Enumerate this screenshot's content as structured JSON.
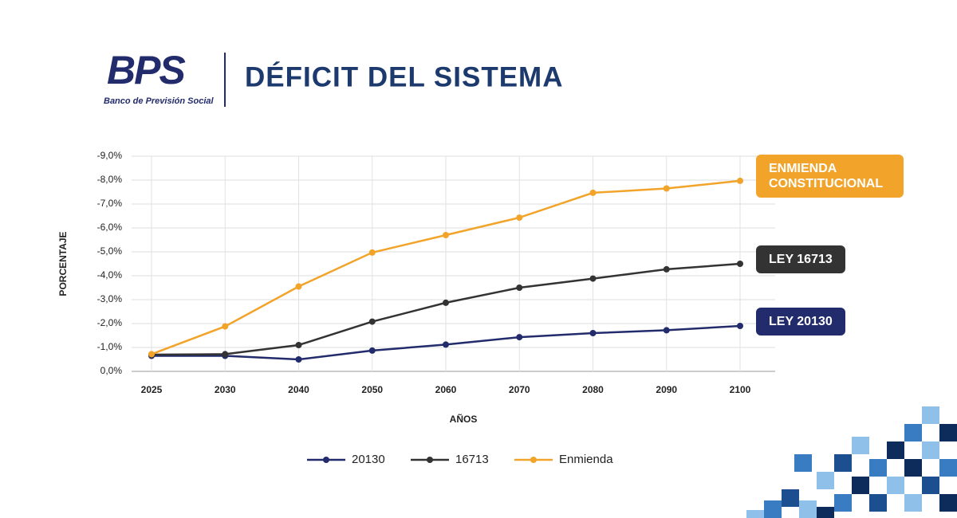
{
  "header": {
    "logo": "BPS",
    "tagline": "Banco de Previsión Social",
    "title": "DÉFICIT DEL SISTEMA"
  },
  "chart_data": {
    "type": "line",
    "y_label": "PORCENTAJE",
    "x_label": "AÑOS",
    "categories": [
      "2025",
      "2030",
      "2040",
      "2050",
      "2060",
      "2070",
      "2080",
      "2090",
      "2100"
    ],
    "ylim": [
      0,
      -9
    ],
    "yticks": [
      {
        "value": 0,
        "label": "0,0%"
      },
      {
        "value": -1,
        "label": "-1,0%"
      },
      {
        "value": -2,
        "label": "-2,0%"
      },
      {
        "value": -3,
        "label": "-3,0%"
      },
      {
        "value": -4,
        "label": "-4,0%"
      },
      {
        "value": -5,
        "label": "-5,0%"
      },
      {
        "value": -6,
        "label": "-6,0%"
      },
      {
        "value": -7,
        "label": "-7,0%"
      },
      {
        "value": -8,
        "label": "-8,0%"
      },
      {
        "value": -9,
        "label": "-9,0%"
      }
    ],
    "grid": true,
    "series": [
      {
        "name": "20130",
        "label": "LEY 20130",
        "color": "#222b6b",
        "values": [
          -0.65,
          -0.65,
          -0.5,
          -0.87,
          -1.12,
          -1.43,
          -1.6,
          -1.72,
          -1.9
        ]
      },
      {
        "name": "16713",
        "label": "LEY 16713",
        "color": "#333333",
        "values": [
          -0.7,
          -0.72,
          -1.1,
          -2.08,
          -2.87,
          -3.5,
          -3.88,
          -4.27,
          -4.5
        ]
      },
      {
        "name": "Enmienda",
        "label": "ENMIENDA CONSTITUCIONAL",
        "color": "#f2a42a",
        "values": [
          -0.72,
          -1.88,
          -3.55,
          -4.97,
          -5.7,
          -6.43,
          -7.47,
          -7.65,
          -7.97
        ]
      }
    ]
  }
}
